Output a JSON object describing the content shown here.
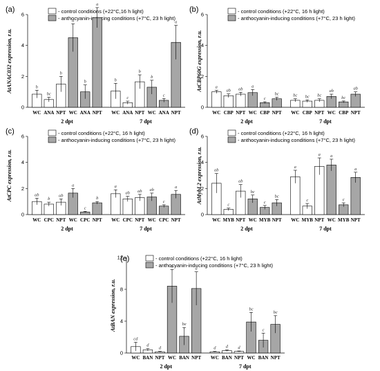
{
  "colors": {
    "control": "#ffffff",
    "induced": "#a6a6a6",
    "edge": "#000000"
  },
  "legend": {
    "control": "- control conditions (+22°C, 16 h light)",
    "control_a": "- control conditions (+22°C,16 h light)",
    "induced": "- anthocyanin-inducing conditions (+7°C, 23 h light)"
  },
  "chart_data": [
    {
      "panel": "(a)",
      "type": "bar",
      "ylabel": "AtANAC032 expression, r.u.",
      "ylim": [
        0,
        6
      ],
      "yticks": [
        0,
        2,
        4,
        6
      ],
      "groups": [
        {
          "label": "2 dpt",
          "categories": [
            "WC",
            "ANA",
            "NPT",
            "WC",
            "ANA",
            "NPT"
          ],
          "conditions": [
            "control",
            "control",
            "control",
            "induced",
            "induced",
            "induced"
          ],
          "values": [
            0.85,
            0.5,
            1.5,
            4.5,
            1.0,
            5.8
          ],
          "errors": [
            0.25,
            0.15,
            0.5,
            0.9,
            0.45,
            0.65
          ],
          "letters": [
            "b",
            "bc",
            "b",
            "a",
            "b",
            "a"
          ]
        },
        {
          "label": "7 dpt",
          "categories": [
            "WC",
            "ANA",
            "NPT",
            "WC",
            "ANA",
            "NPT"
          ],
          "conditions": [
            "control",
            "control",
            "control",
            "induced",
            "induced",
            "induced"
          ],
          "values": [
            1.05,
            0.3,
            1.65,
            1.3,
            0.45,
            4.2
          ],
          "errors": [
            0.5,
            0.1,
            0.45,
            0.45,
            0.12,
            1.1
          ],
          "letters": [
            "b",
            "c",
            "b",
            "b",
            "c",
            "a"
          ]
        }
      ]
    },
    {
      "panel": "(b)",
      "type": "bar",
      "ylabel": "AtCBP60G expression, r.u.",
      "ylim": [
        0,
        6
      ],
      "yticks": [
        0,
        2,
        4,
        6
      ],
      "groups": [
        {
          "label": "2 dpt",
          "categories": [
            "WC",
            "CBP",
            "NPT",
            "WC",
            "CBP",
            "NPT"
          ],
          "conditions": [
            "control",
            "control",
            "control",
            "induced",
            "induced",
            "induced"
          ],
          "values": [
            1.0,
            0.75,
            0.85,
            0.95,
            0.3,
            0.55
          ],
          "errors": [
            0.1,
            0.12,
            0.12,
            0.2,
            0.06,
            0.1
          ],
          "letters": [
            "a",
            "ab",
            "ab",
            "a",
            "c",
            "bc"
          ]
        },
        {
          "label": "7 dpt",
          "categories": [
            "WC",
            "CBP",
            "NPT",
            "WC",
            "CBP",
            "NPT"
          ],
          "conditions": [
            "control",
            "control",
            "control",
            "induced",
            "induced",
            "induced"
          ],
          "values": [
            0.45,
            0.4,
            0.45,
            0.7,
            0.35,
            0.85
          ],
          "errors": [
            0.1,
            0.08,
            0.1,
            0.15,
            0.06,
            0.15
          ],
          "letters": [
            "bc",
            "bc",
            "bc",
            "ab",
            "bc",
            "ab"
          ]
        }
      ]
    },
    {
      "panel": "(c)",
      "type": "bar",
      "ylabel": "AtCPC expression, r.u.",
      "ylim": [
        0,
        6
      ],
      "yticks": [
        0,
        2,
        4,
        6
      ],
      "groups": [
        {
          "label": "2 dpt",
          "categories": [
            "WC",
            "CPC",
            "NPT",
            "WC",
            "CPC",
            "NPT"
          ],
          "conditions": [
            "control",
            "control",
            "control",
            "induced",
            "induced",
            "induced"
          ],
          "values": [
            1.0,
            0.8,
            0.95,
            1.65,
            0.2,
            0.9
          ],
          "errors": [
            0.25,
            0.15,
            0.25,
            0.35,
            0.05,
            0.1
          ],
          "letters": [
            "ab",
            "b",
            "ab",
            "a",
            "c",
            "b"
          ]
        },
        {
          "label": "7 dpt",
          "categories": [
            "WC",
            "CPC",
            "NPT",
            "WC",
            "CPC",
            "NPT"
          ],
          "conditions": [
            "control",
            "control",
            "control",
            "induced",
            "induced",
            "induced"
          ],
          "values": [
            1.6,
            1.2,
            1.3,
            1.35,
            0.65,
            1.55
          ],
          "errors": [
            0.3,
            0.2,
            0.25,
            0.3,
            0.1,
            0.3
          ],
          "letters": [
            "a",
            "ab",
            "ab",
            "ab",
            "c",
            "a"
          ]
        }
      ]
    },
    {
      "panel": "(d)",
      "type": "bar",
      "ylabel": "AtMybL2 expression, r.u.",
      "ylim": [
        0,
        6
      ],
      "yticks": [
        0,
        2,
        4,
        6
      ],
      "groups": [
        {
          "label": "2 dpt",
          "categories": [
            "WC",
            "MYB",
            "NPT",
            "WC",
            "MYB",
            "NPT"
          ],
          "conditions": [
            "control",
            "control",
            "control",
            "induced",
            "induced",
            "induced"
          ],
          "values": [
            2.4,
            0.4,
            1.8,
            1.2,
            0.55,
            0.9
          ],
          "errors": [
            0.75,
            0.1,
            0.5,
            0.3,
            0.15,
            0.25
          ],
          "letters": [
            "ab",
            "c",
            "ab",
            "bc",
            "c",
            "bc"
          ]
        },
        {
          "label": "7 dpt",
          "categories": [
            "WC",
            "MYB",
            "NPT",
            "WC",
            "MYB",
            "NPT"
          ],
          "conditions": [
            "control",
            "control",
            "control",
            "induced",
            "induced",
            "induced"
          ],
          "values": [
            2.9,
            0.65,
            3.7,
            3.8,
            0.75,
            2.85
          ],
          "errors": [
            0.5,
            0.2,
            0.65,
            0.45,
            0.15,
            0.4
          ],
          "letters": [
            "a",
            "c",
            "a",
            "a",
            "c",
            "a"
          ]
        }
      ]
    },
    {
      "panel": "(e)",
      "type": "bar",
      "ylabel": "AtBAN expression, r.u.",
      "ylim": [
        0,
        12
      ],
      "yticks": [
        0,
        4,
        8,
        12
      ],
      "groups": [
        {
          "label": "2 dpt",
          "categories": [
            "WC",
            "BAN",
            "NPT",
            "WC",
            "BAN",
            "NPT"
          ],
          "conditions": [
            "control",
            "control",
            "control",
            "induced",
            "induced",
            "induced"
          ],
          "values": [
            0.8,
            0.4,
            0.15,
            8.4,
            2.1,
            8.1
          ],
          "errors": [
            0.55,
            0.15,
            0.05,
            2.1,
            1.1,
            2.1
          ],
          "letters": [
            "cd",
            "d",
            "d",
            "a",
            "be",
            "a"
          ]
        },
        {
          "label": "7 dpt",
          "categories": [
            "WC",
            "BAN",
            "NPT",
            "WC",
            "BAN",
            "NPT"
          ],
          "conditions": [
            "control",
            "control",
            "control",
            "induced",
            "induced",
            "induced"
          ],
          "values": [
            0.15,
            0.3,
            0.2,
            3.9,
            1.6,
            3.6
          ],
          "errors": [
            0.05,
            0.08,
            0.05,
            1.2,
            0.9,
            1.1
          ],
          "letters": [
            "d",
            "d",
            "d",
            "bc",
            "c",
            "bc"
          ]
        }
      ]
    }
  ]
}
